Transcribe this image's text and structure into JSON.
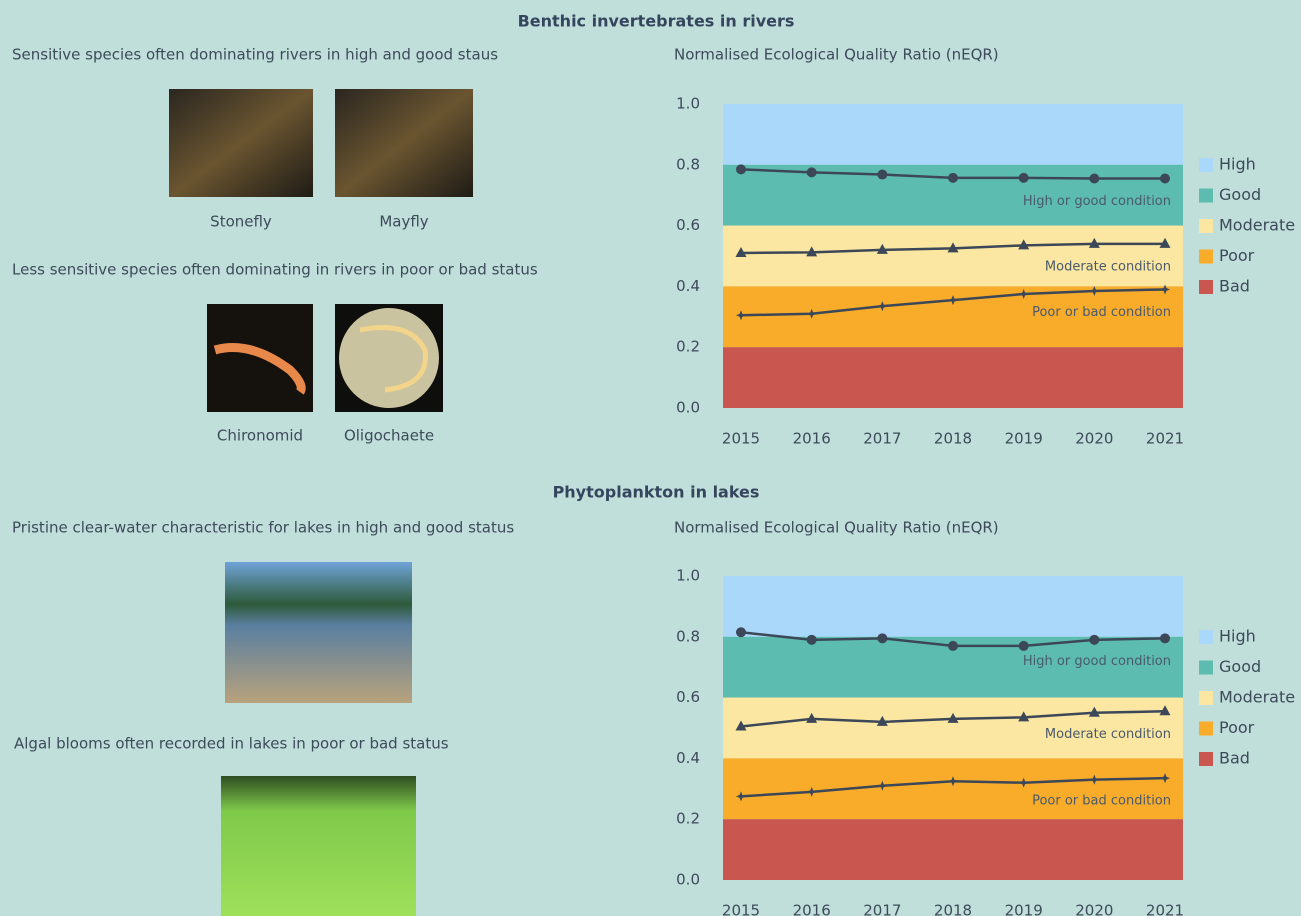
{
  "sections": [
    {
      "title": "Benthic invertebrates in rivers",
      "groups": [
        {
          "caption": "Sensitive species often dominating rivers in high and good staus",
          "images": [
            "Stonefly",
            "Mayfly"
          ]
        },
        {
          "caption": "Less sensitive species often dominating in rivers in poor or bad status",
          "images": [
            "Chironomid",
            "Oligochaete"
          ]
        }
      ]
    },
    {
      "title": "Phytoplankton in lakes",
      "groups": [
        {
          "caption": "Pristine clear-water characteristic for lakes in high and good status"
        },
        {
          "caption": "Algal blooms often recorded in lakes in poor or bad status"
        }
      ]
    }
  ],
  "chart_data": [
    {
      "type": "line",
      "title": "Normalised Ecological Quality Ratio (nEQR)",
      "categories": [
        "2015",
        "2016",
        "2017",
        "2018",
        "2019",
        "2020",
        "2021"
      ],
      "ylim": [
        0,
        1
      ],
      "yticks": [
        {
          "value": 0,
          "label": "0.0"
        },
        0.2,
        0.4,
        0.6,
        0.8,
        {
          "value": 1,
          "label": "1.0"
        }
      ],
      "bands": [
        {
          "name": "High",
          "color": "#a9d8fa",
          "from": 0.8,
          "to": 1
        },
        {
          "name": "Good",
          "color": "#5dbcb0",
          "from": 0.6,
          "to": 0.8
        },
        {
          "name": "Moderate",
          "color": "#fbe7a1",
          "from": 0.4,
          "to": 0.6
        },
        {
          "name": "Poor",
          "color": "#f9ac2a",
          "from": 0.2,
          "to": 0.4
        },
        {
          "name": "Bad",
          "color": "#c9574f",
          "from": 0,
          "to": 0.2
        }
      ],
      "series": [
        {
          "name": "High or good condition",
          "color": "#3c4858",
          "values": [
            0.785,
            0.775,
            0.768,
            0.757,
            0.757,
            0.755,
            0.755
          ]
        },
        {
          "name": "Moderate condition",
          "color": "#3c4858",
          "values": [
            0.51,
            0.512,
            0.52,
            0.525,
            0.535,
            0.54,
            0.54
          ]
        },
        {
          "name": "Poor or bad condition",
          "color": "#3c4858",
          "values": [
            0.305,
            0.31,
            0.335,
            0.355,
            0.375,
            0.385,
            0.39
          ]
        }
      ]
    },
    {
      "type": "line",
      "title": "Normalised Ecological Quality Ratio (nEQR)",
      "categories": [
        "2015",
        "2016",
        "2017",
        "2018",
        "2019",
        "2020",
        "2021"
      ],
      "ylim": [
        0,
        1
      ],
      "yticks": [
        {
          "value": 0,
          "label": "0.0"
        },
        0.2,
        0.4,
        0.6,
        0.8,
        {
          "value": 1,
          "label": "1.0"
        }
      ],
      "bands": [
        {
          "name": "High",
          "color": "#a9d8fa",
          "from": 0.8,
          "to": 1
        },
        {
          "name": "Good",
          "color": "#5dbcb0",
          "from": 0.6,
          "to": 0.8
        },
        {
          "name": "Moderate",
          "color": "#fbe7a1",
          "from": 0.4,
          "to": 0.6
        },
        {
          "name": "Poor",
          "color": "#f9ac2a",
          "from": 0.2,
          "to": 0.4
        },
        {
          "name": "Bad",
          "color": "#c9574f",
          "from": 0,
          "to": 0.2
        }
      ],
      "series": [
        {
          "name": "High or good condition",
          "color": "#3c4858",
          "values": [
            0.815,
            0.79,
            0.795,
            0.77,
            0.77,
            0.79,
            0.795
          ]
        },
        {
          "name": "Moderate condition",
          "color": "#3c4858",
          "values": [
            0.505,
            0.53,
            0.52,
            0.53,
            0.535,
            0.55,
            0.555
          ]
        },
        {
          "name": "Poor or bad condition",
          "color": "#3c4858",
          "values": [
            0.275,
            0.29,
            0.31,
            0.325,
            0.32,
            0.33,
            0.335
          ]
        }
      ]
    }
  ]
}
